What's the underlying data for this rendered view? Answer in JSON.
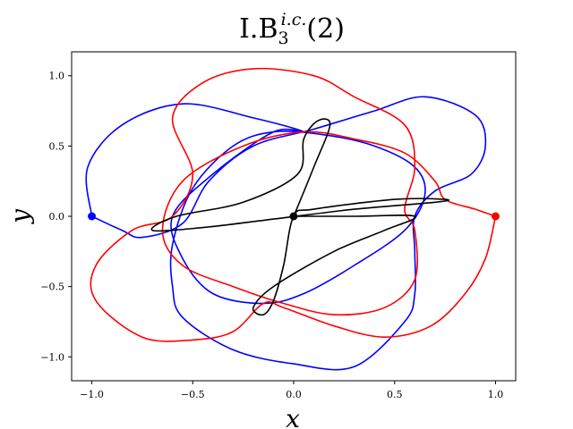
{
  "chart_data": {
    "type": "line",
    "title": {
      "base": "I.B",
      "subscript": "3",
      "superscript": "i.c.",
      "suffix": "(2)"
    },
    "xlabel": "x",
    "ylabel": "y",
    "xlim": [
      -1.1,
      1.1
    ],
    "ylim": [
      -1.17,
      1.17
    ],
    "xticks": [
      -1.0,
      -0.5,
      0.0,
      0.5,
      1.0
    ],
    "xtick_labels": [
      "−1.0",
      "−0.5",
      "0.0",
      "0.5",
      "1.0"
    ],
    "yticks": [
      -1.0,
      -0.5,
      0.0,
      0.5,
      1.0
    ],
    "ytick_labels": [
      "−1.0",
      "−0.5",
      "0.0",
      "0.5",
      "1.0"
    ],
    "grid": false,
    "series": [
      {
        "color": "#0000ff",
        "values": [
          [
            -1.0,
            0.0
          ],
          [
            -0.85,
            -0.1
          ],
          [
            -0.75,
            -0.15
          ],
          [
            -0.55,
            -0.05
          ],
          [
            -0.42,
            0.25
          ],
          [
            -0.2,
            0.5
          ],
          [
            0.1,
            0.62
          ],
          [
            0.4,
            0.75
          ],
          [
            0.65,
            0.85
          ],
          [
            0.9,
            0.72
          ],
          [
            0.95,
            0.5
          ],
          [
            0.88,
            0.3
          ],
          [
            0.7,
            0.18
          ],
          [
            0.6,
            0.0
          ],
          [
            0.6,
            -0.25
          ],
          [
            0.6,
            -0.55
          ],
          [
            0.55,
            -0.75
          ],
          [
            0.3,
            -1.07
          ],
          [
            0.0,
            -1.05
          ],
          [
            -0.3,
            -0.95
          ],
          [
            -0.55,
            -0.72
          ],
          [
            -0.6,
            -0.5
          ],
          [
            -0.6,
            -0.2
          ],
          [
            -0.5,
            0.2
          ],
          [
            -0.3,
            0.5
          ],
          [
            -0.1,
            0.6
          ],
          [
            0.15,
            0.58
          ],
          [
            0.4,
            0.5
          ],
          [
            0.6,
            0.35
          ],
          [
            0.65,
            0.15
          ],
          [
            0.55,
            -0.1
          ],
          [
            0.3,
            -0.35
          ],
          [
            0.05,
            -0.55
          ],
          [
            -0.15,
            -0.62
          ],
          [
            -0.4,
            -0.55
          ],
          [
            -0.55,
            -0.3
          ],
          [
            -0.6,
            0.0
          ],
          [
            -0.4,
            0.3
          ],
          [
            -0.1,
            0.6
          ],
          [
            0.05,
            0.6
          ],
          [
            -0.2,
            0.7
          ],
          [
            -0.55,
            0.8
          ],
          [
            -0.85,
            0.65
          ],
          [
            -1.02,
            0.35
          ],
          [
            -1.0,
            0.0
          ]
        ]
      },
      {
        "color": "#ff0000",
        "values": [
          [
            1.0,
            0.0
          ],
          [
            0.95,
            -0.3
          ],
          [
            0.85,
            -0.55
          ],
          [
            0.68,
            -0.78
          ],
          [
            0.45,
            -0.86
          ],
          [
            0.2,
            -0.78
          ],
          [
            -0.05,
            -0.65
          ],
          [
            -0.15,
            -0.62
          ],
          [
            -0.3,
            -0.82
          ],
          [
            -0.5,
            -0.88
          ],
          [
            -0.75,
            -0.86
          ],
          [
            -0.98,
            -0.6
          ],
          [
            -0.98,
            -0.35
          ],
          [
            -0.8,
            -0.1
          ],
          [
            -0.6,
            0.0
          ],
          [
            -0.5,
            0.3
          ],
          [
            -0.6,
            0.7
          ],
          [
            -0.45,
            0.95
          ],
          [
            -0.2,
            1.05
          ],
          [
            0.1,
            1.0
          ],
          [
            0.3,
            0.85
          ],
          [
            0.55,
            0.65
          ],
          [
            0.6,
            0.35
          ],
          [
            0.55,
            0.05
          ],
          [
            0.6,
            -0.1
          ],
          [
            0.6,
            -0.45
          ],
          [
            0.45,
            -0.65
          ],
          [
            0.2,
            -0.7
          ],
          [
            -0.05,
            -0.62
          ],
          [
            -0.3,
            -0.5
          ],
          [
            -0.55,
            -0.35
          ],
          [
            -0.65,
            -0.1
          ],
          [
            -0.55,
            0.25
          ],
          [
            -0.25,
            0.5
          ],
          [
            0.05,
            0.6
          ],
          [
            0.3,
            0.55
          ],
          [
            0.55,
            0.45
          ],
          [
            0.7,
            0.25
          ],
          [
            0.75,
            0.12
          ],
          [
            0.9,
            0.05
          ],
          [
            1.0,
            0.0
          ]
        ]
      },
      {
        "color": "#000000",
        "values": [
          [
            0.0,
            0.0
          ],
          [
            0.1,
            0.35
          ],
          [
            0.18,
            0.65
          ],
          [
            0.12,
            0.68
          ],
          [
            0.05,
            0.55
          ],
          [
            0.02,
            0.3
          ],
          [
            -0.25,
            0.1
          ],
          [
            -0.58,
            0.0
          ],
          [
            -0.7,
            -0.1
          ],
          [
            -0.45,
            -0.08
          ],
          [
            -0.1,
            -0.02
          ],
          [
            0.3,
            0.05
          ],
          [
            0.7,
            0.1
          ],
          [
            0.75,
            0.12
          ],
          [
            0.5,
            0.12
          ],
          [
            0.1,
            0.05
          ],
          [
            0.0,
            0.0
          ],
          [
            -0.05,
            -0.35
          ],
          [
            -0.1,
            -0.6
          ],
          [
            -0.15,
            -0.7
          ],
          [
            -0.2,
            -0.65
          ],
          [
            -0.1,
            -0.5
          ],
          [
            0.2,
            -0.25
          ],
          [
            0.45,
            -0.1
          ],
          [
            0.6,
            0.0
          ],
          [
            0.3,
            0.0
          ],
          [
            0.0,
            0.0
          ]
        ]
      }
    ],
    "markers": [
      {
        "x": -1.0,
        "y": 0.0,
        "color": "#0000ff"
      },
      {
        "x": 1.0,
        "y": 0.0,
        "color": "#ff0000"
      },
      {
        "x": 0.0,
        "y": 0.0,
        "color": "#000000"
      }
    ]
  }
}
